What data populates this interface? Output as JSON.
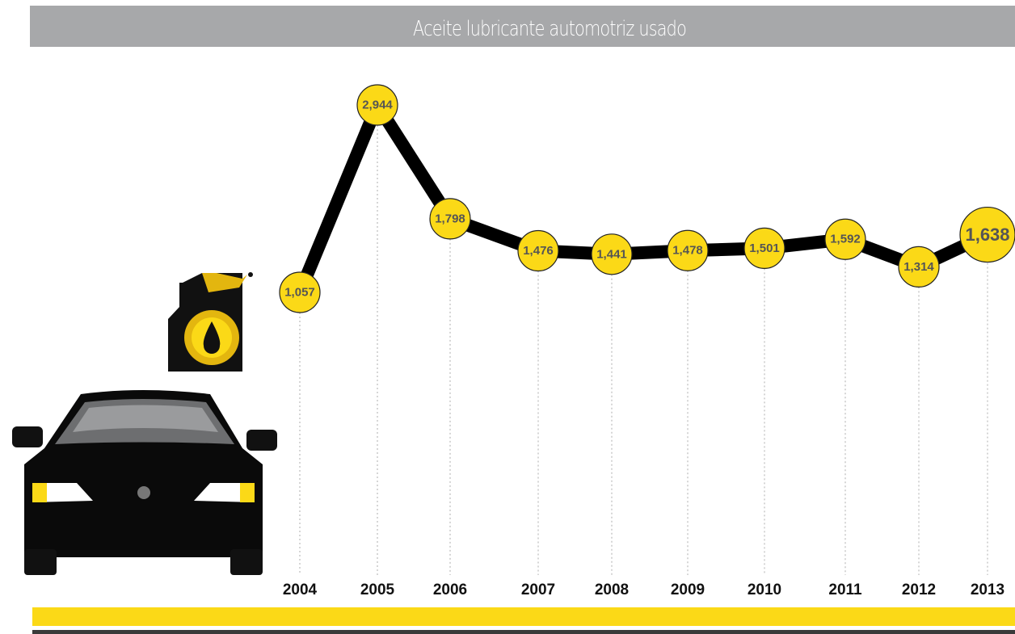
{
  "chart_data": {
    "type": "line",
    "title": "Aceite lubricante automotriz usado",
    "categories": [
      "2004",
      "2005",
      "2006",
      "2007",
      "2008",
      "2009",
      "2010",
      "2011",
      "2012",
      "2013"
    ],
    "values": [
      1057,
      2944,
      1798,
      1476,
      1441,
      1478,
      1501,
      1592,
      1314,
      1638
    ],
    "value_labels": [
      "1,057",
      "2,944",
      "1,798",
      "1,476",
      "1,441",
      "1,478",
      "1,501",
      "1,592",
      "1,314",
      "1,638"
    ],
    "color": "#000000",
    "marker_color": "#fbd917"
  }
}
